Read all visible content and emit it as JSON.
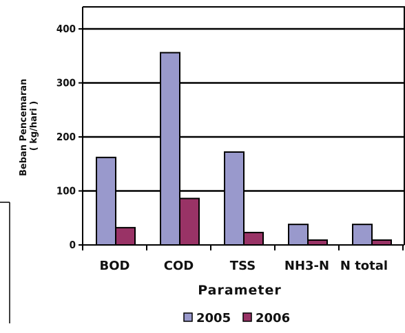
{
  "chart_data": {
    "type": "bar",
    "categories": [
      "BOD",
      "COD",
      "TSS",
      "NH3-N",
      "N total"
    ],
    "series": [
      {
        "name": "2005",
        "values": [
          162,
          356,
          172,
          38,
          38
        ],
        "color": "#9999cc"
      },
      {
        "name": "2006",
        "values": [
          32,
          86,
          23,
          9,
          9
        ],
        "color": "#993366"
      }
    ],
    "title": "",
    "xlabel": "Parameter",
    "ylabel": [
      "Beban Pencemaran",
      "( kg/hari )"
    ],
    "ylim": [
      0,
      400
    ],
    "yticks": [
      "0",
      "100",
      "200",
      "300",
      "400"
    ],
    "grid": true,
    "legend_position": "bottom"
  }
}
